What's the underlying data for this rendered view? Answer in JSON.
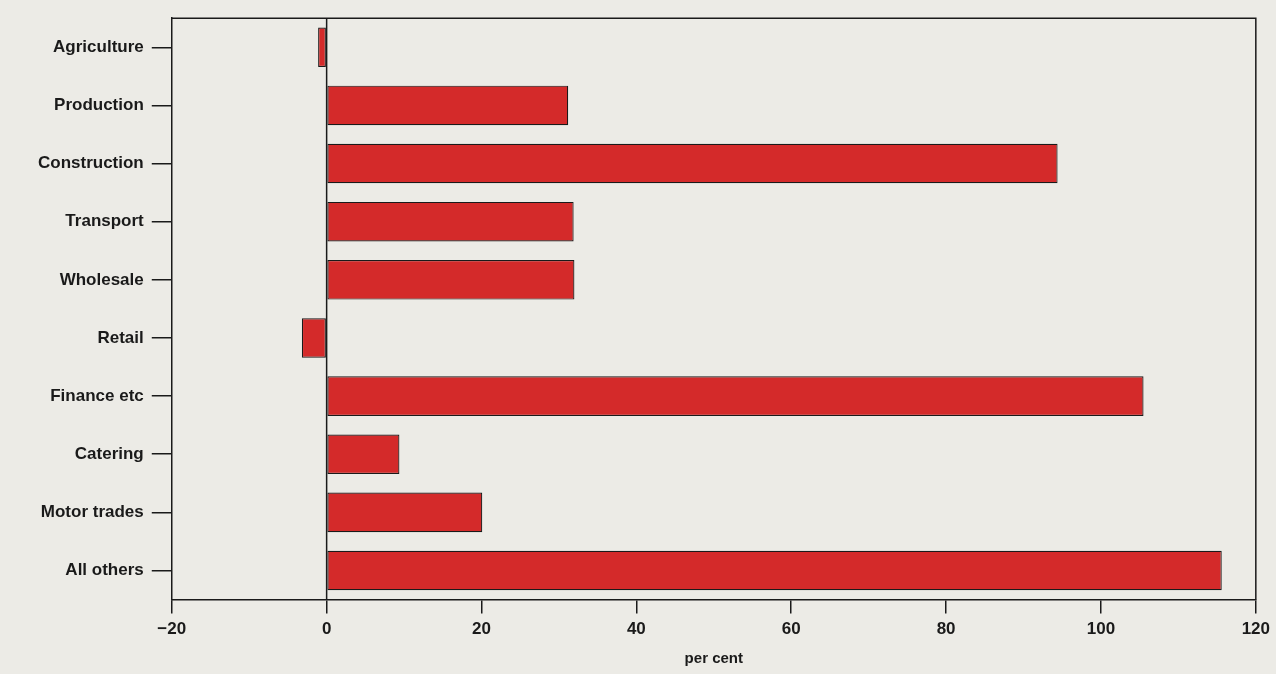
{
  "chart_data": {
    "type": "bar",
    "orientation": "horizontal",
    "xlabel": "per cent",
    "categories": [
      "Agriculture",
      "Production",
      "Construction",
      "Transport",
      "Wholesale",
      "Retail",
      "Finance etc",
      "Catering",
      "Motor trades",
      "All others"
    ],
    "values": [
      -1.1,
      31.2,
      94.4,
      31.9,
      32,
      -3.2,
      105.5,
      9.4,
      20.1,
      115.6
    ],
    "color": "#d42a2a",
    "xlim": [
      -20,
      120
    ],
    "xticks": [
      -20,
      0,
      20,
      40,
      60,
      80,
      100,
      120
    ],
    "legend": false
  }
}
